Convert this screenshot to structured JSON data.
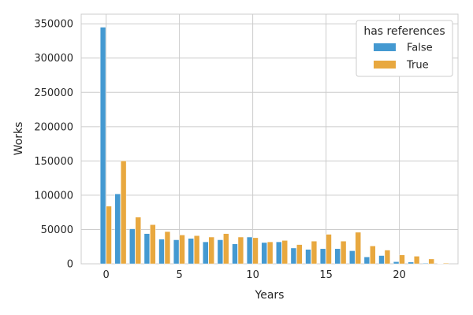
{
  "chart_data": {
    "type": "bar",
    "xlabel": "Years",
    "ylabel": "Works",
    "x": [
      0,
      1,
      2,
      3,
      4,
      5,
      6,
      7,
      8,
      9,
      10,
      11,
      12,
      13,
      14,
      15,
      16,
      17,
      18,
      19,
      20,
      21,
      22,
      23
    ],
    "xticks": [
      "0",
      "5",
      "10",
      "15",
      "20"
    ],
    "xtick_values": [
      0,
      5,
      10,
      15,
      20
    ],
    "yticks": [
      "0",
      "50000",
      "100000",
      "150000",
      "200000",
      "250000",
      "300000",
      "350000"
    ],
    "ytick_values": [
      0,
      50000,
      100000,
      150000,
      200000,
      250000,
      300000,
      350000
    ],
    "xlim": [
      -1.7,
      24.0
    ],
    "ylim": [
      0,
      364000
    ],
    "grid": true,
    "legend": {
      "title": "has references",
      "placement": "top-right"
    },
    "series": [
      {
        "name": "False",
        "color": "#4499d1",
        "values": [
          345000,
          102000,
          51000,
          44000,
          36000,
          35000,
          37000,
          32000,
          35000,
          29000,
          39000,
          31000,
          32000,
          23000,
          21000,
          22000,
          22000,
          19000,
          10000,
          12000,
          3000,
          2500,
          800,
          300
        ]
      },
      {
        "name": "True",
        "color": "#e8a83f",
        "values": [
          84000,
          150000,
          68000,
          57000,
          47000,
          42000,
          41000,
          39000,
          44000,
          39000,
          38000,
          32000,
          34000,
          28000,
          33000,
          43000,
          33000,
          46000,
          26000,
          20000,
          13000,
          11000,
          7000,
          1000
        ]
      }
    ]
  }
}
